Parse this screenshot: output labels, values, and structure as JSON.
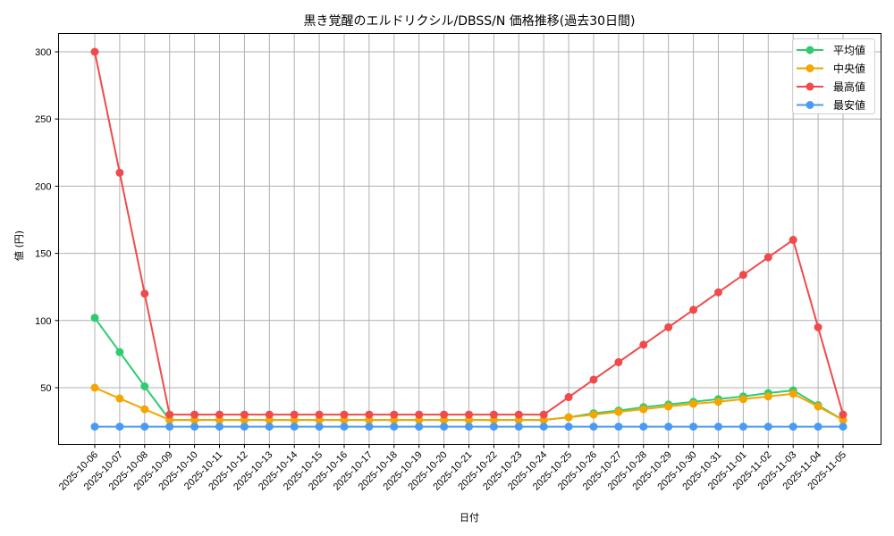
{
  "chart_data": {
    "type": "line",
    "title": "黒き覚醒のエルドリクシル/DBSS/N 価格推移(過去30日間)",
    "xlabel": "日付",
    "ylabel": "値 (円)",
    "ylim": [
      10,
      315
    ],
    "yticks": [
      50,
      100,
      150,
      200,
      250,
      300
    ],
    "grid": true,
    "legend_position": "upper right",
    "x": [
      "2025-10-06",
      "2025-10-07",
      "2025-10-08",
      "2025-10-09",
      "2025-10-10",
      "2025-10-11",
      "2025-10-12",
      "2025-10-13",
      "2025-10-14",
      "2025-10-15",
      "2025-10-16",
      "2025-10-17",
      "2025-10-18",
      "2025-10-19",
      "2025-10-20",
      "2025-10-21",
      "2025-10-22",
      "2025-10-23",
      "2025-10-24",
      "2025-10-25",
      "2025-10-26",
      "2025-10-27",
      "2025-10-28",
      "2025-10-29",
      "2025-10-30",
      "2025-10-31",
      "2025-11-01",
      "2025-11-02",
      "2025-11-03",
      "2025-11-04",
      "2025-11-05"
    ],
    "series": [
      {
        "name": "平均値",
        "color": "#2ecc71",
        "values": [
          102,
          76.5,
          51,
          26,
          26,
          26,
          26,
          26,
          26,
          26,
          26,
          26,
          26,
          26,
          26,
          26,
          26,
          26,
          26,
          28,
          31,
          33,
          35.5,
          37.5,
          39.5,
          41.5,
          43.5,
          46,
          48,
          37,
          26
        ]
      },
      {
        "name": "中央値",
        "color": "#f5a500",
        "values": [
          50,
          42,
          34,
          26,
          26,
          26,
          26,
          26,
          26,
          26,
          26,
          26,
          26,
          26,
          26,
          26,
          26,
          26,
          26,
          28,
          30,
          32,
          34,
          36,
          38,
          39.5,
          41.5,
          43.5,
          45.5,
          36,
          26
        ]
      },
      {
        "name": "最高値",
        "color": "#f04b4b",
        "values": [
          300,
          210,
          120,
          30,
          30,
          30,
          30,
          30,
          30,
          30,
          30,
          30,
          30,
          30,
          30,
          30,
          30,
          30,
          30,
          43,
          56,
          69,
          82,
          95,
          108,
          121,
          134,
          147,
          160,
          95,
          30
        ]
      },
      {
        "name": "最安値",
        "color": "#4a9af5",
        "values": [
          21,
          21,
          21,
          21,
          21,
          21,
          21,
          21,
          21,
          21,
          21,
          21,
          21,
          21,
          21,
          21,
          21,
          21,
          21,
          21,
          21,
          21,
          21,
          21,
          21,
          21,
          21,
          21,
          21,
          21,
          21
        ]
      }
    ]
  }
}
